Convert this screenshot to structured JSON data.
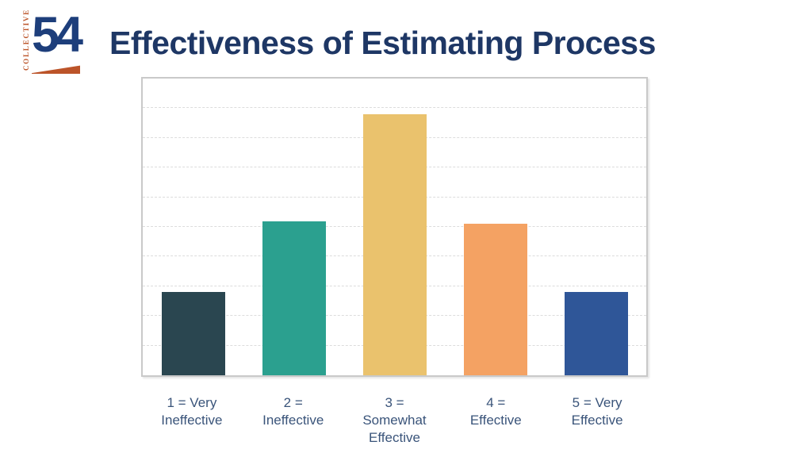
{
  "logo": {
    "vertical_text": "COLLECTIVE",
    "number": "54",
    "navy": "#1d3e7b",
    "orange": "#bc5429"
  },
  "header": {
    "title": "Effectiveness of Estimating Process",
    "title_color": "#1e3765"
  },
  "chart_data": {
    "type": "bar",
    "title": "Effectiveness of Estimating Process",
    "categories": [
      "1 = Very Ineffective",
      "2 = Ineffective",
      "3 = Somewhat Effective",
      "4 = Effective",
      "5 = Very Effective"
    ],
    "category_lines": [
      [
        "1 = Very",
        "Ineffective"
      ],
      [
        "2 =",
        "Ineffective"
      ],
      [
        "3 =",
        "Somewhat",
        "Effective"
      ],
      [
        "4 =",
        "Effective"
      ],
      [
        "5 = Very",
        "Effective"
      ]
    ],
    "values": [
      2.8,
      5.2,
      8.8,
      5.1,
      2.8
    ],
    "bar_colors": [
      "#2a4650",
      "#2ba08f",
      "#eac26d",
      "#f4a263",
      "#2f5698"
    ],
    "ylim": [
      0,
      10
    ],
    "gridline_step": 1,
    "grid": true,
    "xlabel": "",
    "ylabel": "",
    "legend": false,
    "y_axis_tick_labels_visible": false,
    "plot_background": "#ffffff",
    "frame_border_color": "#c9c9c9",
    "gridline_color": "#dcdcdc",
    "x_label_color": "#3a547a"
  }
}
